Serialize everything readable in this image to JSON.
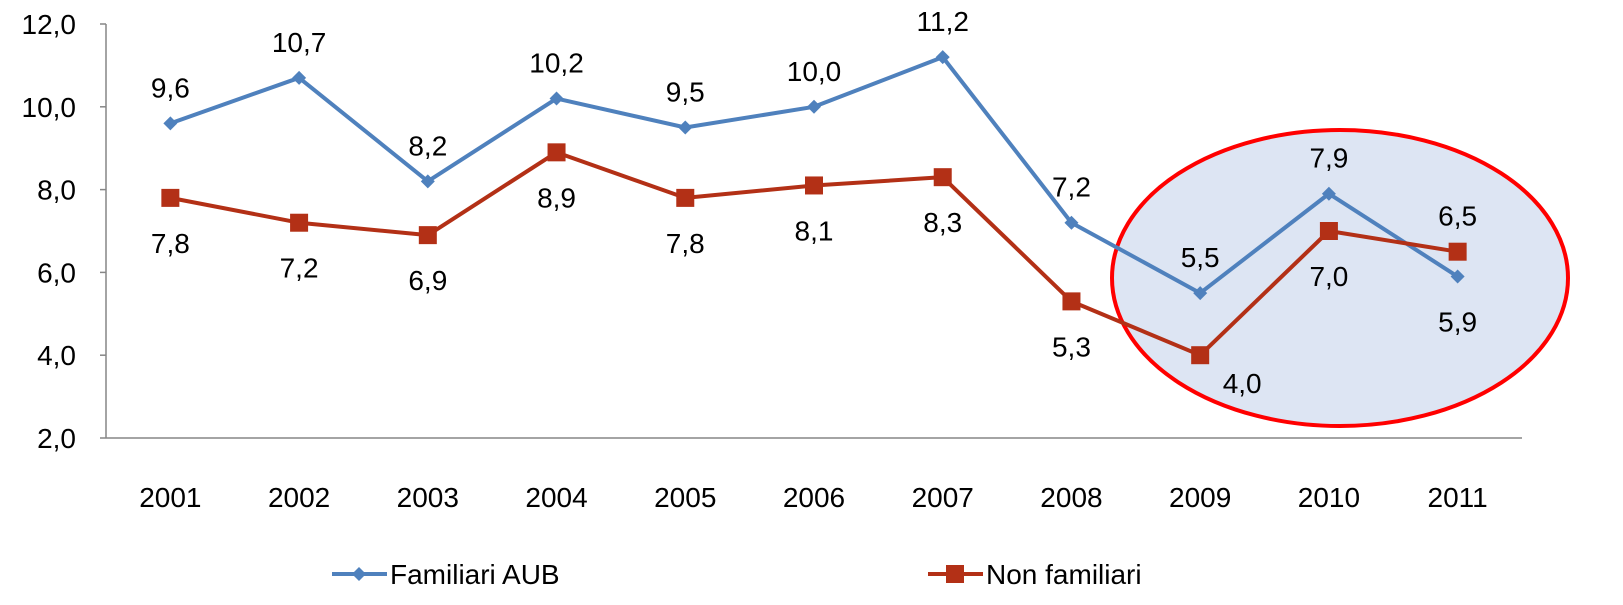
{
  "chart_data": {
    "type": "line",
    "categories": [
      "2001",
      "2002",
      "2003",
      "2004",
      "2005",
      "2006",
      "2007",
      "2008",
      "2009",
      "2010",
      "2011"
    ],
    "series": [
      {
        "name": "Familiari AUB",
        "color": "#4f81bd",
        "marker": "diamond",
        "values": [
          9.6,
          10.7,
          8.2,
          10.2,
          9.5,
          10.0,
          11.2,
          7.2,
          5.5,
          7.9,
          5.9
        ],
        "labels": [
          "9,6",
          "10,7",
          "8,2",
          "10,2",
          "9,5",
          "10,0",
          "11,2",
          "7,2",
          "5,5",
          "7,9",
          "5,9"
        ]
      },
      {
        "name": "Non familiari",
        "color": "#b33016",
        "marker": "square",
        "values": [
          7.8,
          7.2,
          6.9,
          8.9,
          7.8,
          8.1,
          8.3,
          5.3,
          4.0,
          7.0,
          6.5
        ],
        "labels": [
          "7,8",
          "7,2",
          "6,9",
          "8,9",
          "7,8",
          "8,1",
          "8,3",
          "5,3",
          "4,0",
          "7,0",
          "6,5"
        ]
      }
    ],
    "y_ticks": [
      "2,0",
      "4,0",
      "6,0",
      "8,0",
      "10,0",
      "12,0"
    ],
    "ylim": [
      2,
      12
    ],
    "grid": false,
    "legend_position": "bottom",
    "highlight": {
      "type": "ellipse",
      "covers_categories": [
        "2009",
        "2010",
        "2011"
      ],
      "fill": "#dde5f3",
      "stroke": "#ff0000"
    }
  }
}
